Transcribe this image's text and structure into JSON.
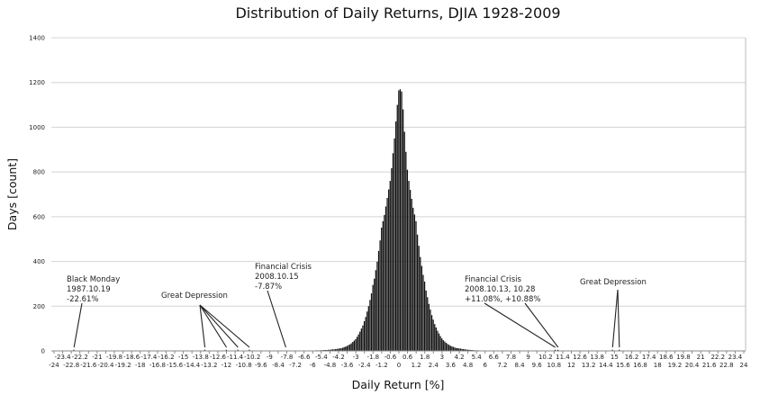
{
  "chart_data": {
    "type": "bar",
    "title": "Distribution of Daily Returns, DJIA 1928-2009",
    "xlabel": "Daily Return [%]",
    "ylabel": "Days [count]",
    "xlim": [
      -24,
      24
    ],
    "ylim": [
      0,
      1400
    ],
    "grid": "horizontal",
    "y_ticks": [
      "0",
      "200",
      "400",
      "600",
      "800",
      "1000",
      "1200",
      "1400"
    ],
    "x_ticks_upper": [
      "-23.4",
      "-22.2",
      "-21",
      "-19.8",
      "-18.6",
      "-17.4",
      "-16.2",
      "-15",
      "-13.8",
      "-12.6",
      "-11.4",
      "-10.2",
      "-9",
      "-7.8",
      "-6.6",
      "-5.4",
      "-4.2",
      "-3",
      "-1.8",
      "-0.6",
      "0.6",
      "1.8",
      "3",
      "4.2",
      "5.4",
      "6.6",
      "7.8",
      "9",
      "10.2",
      "11.4",
      "12.6",
      "13.8",
      "15",
      "16.2",
      "17.4",
      "18.6",
      "19.8",
      "21",
      "22.2",
      "23.4"
    ],
    "x_ticks_lower": [
      "-24",
      "-22.8",
      "-21.6",
      "-20.4",
      "-19.2",
      "-18",
      "-16.8",
      "-15.6",
      "-14.4",
      "-13.2",
      "-12",
      "-10.8",
      "-9.6",
      "-8.4",
      "-7.2",
      "-6",
      "-4.8",
      "-3.6",
      "-2.4",
      "-1.2",
      "0",
      "1.2",
      "2.4",
      "3.6",
      "4.8",
      "6",
      "7.2",
      "8.4",
      "9.6",
      "10.8",
      "12",
      "13.2",
      "14.4",
      "15.6",
      "16.8",
      "18",
      "19.2",
      "20.4",
      "21.6",
      "22.8",
      "24"
    ],
    "bin_width": 0.1,
    "bin_start": -8.0,
    "counts": [
      0,
      1,
      0,
      0,
      1,
      0,
      1,
      0,
      1,
      0,
      1,
      1,
      0,
      1,
      1,
      2,
      1,
      1,
      2,
      2,
      1,
      2,
      2,
      3,
      2,
      3,
      3,
      3,
      4,
      4,
      4,
      5,
      5,
      6,
      7,
      7,
      8,
      9,
      10,
      11,
      12,
      14,
      17,
      19,
      22,
      26,
      29,
      34,
      40,
      46,
      53,
      63,
      74,
      86,
      100,
      114,
      133,
      152,
      176,
      200,
      228,
      257,
      295,
      323,
      361,
      399,
      447,
      494,
      551,
      580,
      608,
      646,
      684,
      722,
      760,
      817,
      884,
      950,
      1026,
      1100,
      1165,
      1170,
      1160,
      1080,
      980,
      890,
      810,
      760,
      720,
      680,
      640,
      610,
      580,
      520,
      470,
      420,
      380,
      340,
      310,
      270,
      240,
      210,
      185,
      160,
      140,
      120,
      105,
      90,
      78,
      66,
      56,
      48,
      42,
      36,
      31,
      27,
      23,
      20,
      18,
      15,
      13,
      12,
      11,
      10,
      9,
      8,
      7,
      6,
      5,
      5,
      4,
      4,
      3,
      3,
      2,
      3,
      2,
      2,
      1,
      2,
      1,
      1,
      1,
      1,
      0,
      1,
      1,
      0,
      1,
      0,
      1,
      0,
      0,
      1,
      0,
      0,
      1,
      0,
      0,
      0,
      0
    ],
    "outliers": [
      {
        "x": -22.61,
        "count": 1
      },
      {
        "x": -13.5,
        "count": 1
      },
      {
        "x": -12.0,
        "count": 1
      },
      {
        "x": -11.2,
        "count": 1
      },
      {
        "x": -10.4,
        "count": 1
      },
      {
        "x": 10.88,
        "count": 1
      },
      {
        "x": 11.08,
        "count": 1
      },
      {
        "x": 14.87,
        "count": 1
      },
      {
        "x": 15.34,
        "count": 1
      }
    ],
    "annotations": [
      {
        "lines": [
          "Black Monday",
          "1987.10.19",
          "-22.61%"
        ],
        "targets": [
          -22.61
        ]
      },
      {
        "lines": [
          "Great Depression"
        ],
        "targets": [
          -13.5,
          -12.0,
          -11.2,
          -10.4
        ]
      },
      {
        "lines": [
          "Financial Crisis",
          "2008.10.15",
          "-7.87%"
        ],
        "targets": [
          -7.87
        ]
      },
      {
        "lines": [
          "Financial Crisis",
          "2008.10.13, 10.28",
          "+11.08%, +10.88%"
        ],
        "targets": [
          10.88,
          11.08
        ]
      },
      {
        "lines": [
          "Great Depression"
        ],
        "targets": [
          14.87,
          15.34
        ]
      }
    ]
  }
}
